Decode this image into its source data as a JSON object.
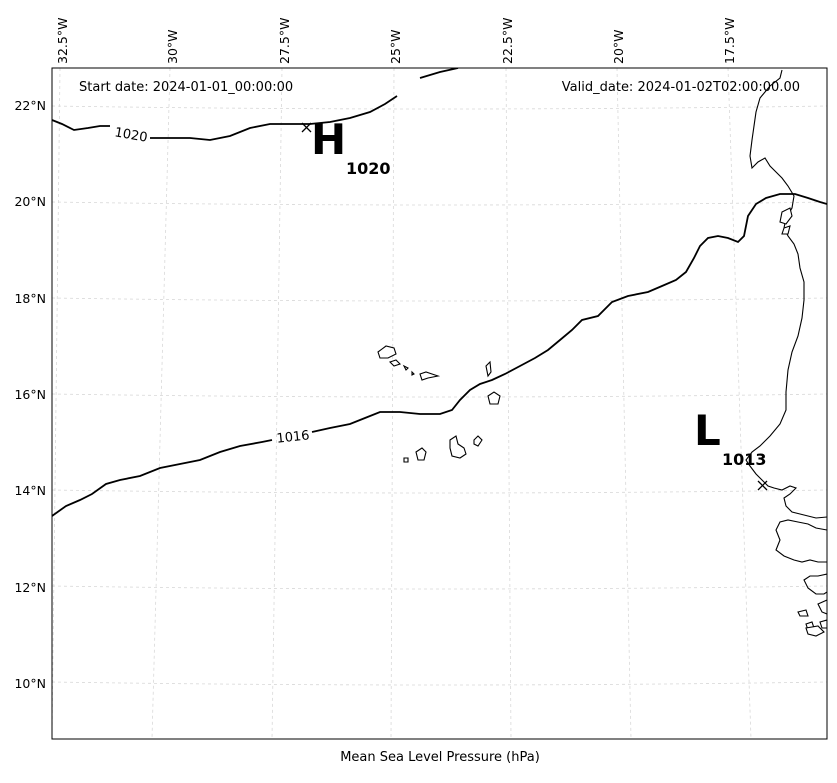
{
  "header": {
    "start_date": "Start date: 2024-01-01_00:00:00",
    "valid_date": "Valid_date: 2024-01-02T02:00:00.00"
  },
  "xlabel": "Mean Sea Level Pressure (hPa)",
  "lon_ticks": [
    "32.5°W",
    "30°W",
    "27.5°W",
    "25°W",
    "22.5°W",
    "20°W",
    "17.5°W"
  ],
  "lat_ticks": [
    "22°N",
    "20°N",
    "18°N",
    "16°N",
    "14°N",
    "12°N",
    "10°N"
  ],
  "pressure_centers": [
    {
      "type": "H",
      "label": "H",
      "value": "1020",
      "lon": -26.8,
      "lat": 21.6
    },
    {
      "type": "L",
      "label": "L",
      "value": "1013",
      "lon": -17.3,
      "lat": 14.2
    }
  ],
  "isobar_labels": [
    "1020",
    "1016"
  ],
  "map_extent": {
    "lon": [
      -33.5,
      -15.5
    ],
    "lat": [
      9,
      22.8
    ]
  }
}
